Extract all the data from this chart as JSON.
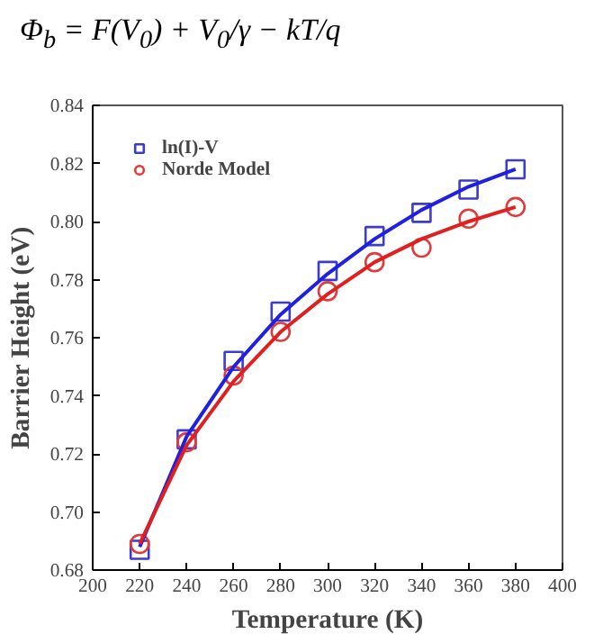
{
  "chart_data": {
    "type": "scatter",
    "annotations": [
      "Φ$_{b}$ = F(V$_{0}$) + V$_{0}$/γ − kT/q"
    ],
    "xlabel": "Temperature (K)",
    "ylabel": "Barrier Height (eV)",
    "xlim": [
      200,
      400
    ],
    "xticks": [
      200,
      220,
      240,
      260,
      280,
      300,
      320,
      340,
      360,
      380,
      400
    ],
    "ylim": [
      0.68,
      0.84
    ],
    "yticks": [
      {
        "value": 0.68,
        "label": "0.68"
      },
      {
        "value": 0.7,
        "label": "0.70"
      },
      {
        "value": 0.72,
        "label": "0.72"
      },
      {
        "value": 0.74,
        "label": "0.74"
      },
      {
        "value": 0.76,
        "label": "0.76"
      },
      {
        "value": 0.78,
        "label": "0.78"
      },
      {
        "value": 0.8,
        "label": "0.80"
      },
      {
        "value": 0.82,
        "label": "0.82"
      },
      {
        "value": 0.84,
        "label": "0.84"
      }
    ],
    "x": [
      220,
      240,
      260,
      280,
      300,
      320,
      340,
      360,
      380
    ],
    "grid": false,
    "legend": "top left",
    "series": [
      {
        "name": "ln(I)-V",
        "marker": "square",
        "color": "#3b3bd0",
        "values": [
          0.687,
          0.725,
          0.752,
          0.769,
          0.783,
          0.795,
          0.803,
          0.811,
          0.818
        ]
      },
      {
        "name": "Norde Model",
        "marker": "circle",
        "color": "#e03a3a",
        "values": [
          0.689,
          0.724,
          0.747,
          0.762,
          0.776,
          0.786,
          0.791,
          0.801,
          0.805
        ]
      },
      {
        "type": "line",
        "line_style": "solid",
        "color": "#2020e0",
        "values": [
          0.688,
          0.726,
          0.75,
          0.768,
          0.782,
          0.794,
          0.804,
          0.812,
          0.818
        ]
      },
      {
        "type": "line",
        "line_style": "solid",
        "color": "#e02020",
        "values": [
          0.689,
          0.723,
          0.745,
          0.762,
          0.775,
          0.786,
          0.794,
          0.8,
          0.805
        ]
      }
    ]
  }
}
